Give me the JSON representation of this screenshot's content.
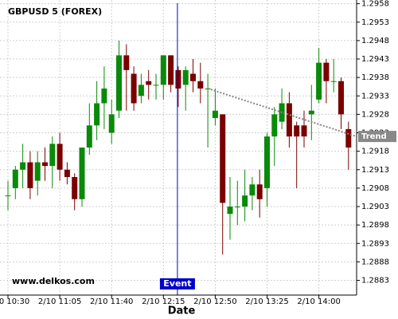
{
  "chart_data": {
    "type": "candlestick",
    "title": "GBPUSD 5 (FOREX)",
    "x_label": "Date",
    "watermark": "www.delkos.com",
    "categories": [
      "2/10 10:30",
      null,
      null,
      null,
      null,
      null,
      null,
      "2/10 11:05",
      null,
      null,
      null,
      null,
      null,
      null,
      "2/10 11:40",
      null,
      null,
      null,
      null,
      null,
      null,
      "2/10 12:15",
      null,
      null,
      null,
      null,
      null,
      null,
      "2/10 12:50",
      null,
      null,
      null,
      null,
      null,
      null,
      "2/10 13:25",
      null,
      null,
      null,
      null,
      null,
      null,
      "2/10 14:00",
      null,
      null,
      null,
      null
    ],
    "open": [
      1.2906,
      1.2908,
      1.2913,
      1.2915,
      1.291,
      1.2915,
      1.2914,
      1.292,
      1.2913,
      1.2911,
      1.2905,
      1.2919,
      1.2925,
      1.2931,
      1.2923,
      1.2929,
      1.2944,
      1.2939,
      1.2933,
      1.2937,
      1.2936,
      1.2936,
      1.2944,
      1.294,
      1.2936,
      1.2939,
      1.2937,
      1.2935,
      1.2927,
      1.2928,
      1.2901,
      1.2903,
      1.2903,
      1.2906,
      1.2909,
      1.2908,
      1.2922,
      1.2926,
      1.2931,
      1.2925,
      1.2925,
      1.2928,
      1.2932,
      1.2942,
      1.2937,
      1.2937,
      1.2924
    ],
    "high": [
      1.291,
      1.2914,
      1.292,
      1.2918,
      1.2918,
      1.2919,
      1.2922,
      1.2923,
      1.2915,
      1.2912,
      1.2919,
      1.2931,
      1.2937,
      1.2941,
      1.2932,
      1.2948,
      1.2947,
      1.2941,
      1.2939,
      1.294,
      1.2939,
      1.2944,
      1.2944,
      1.2941,
      1.2941,
      1.2943,
      1.2942,
      1.2939,
      1.2935,
      1.2928,
      1.2911,
      1.291,
      1.2913,
      1.2911,
      1.2913,
      1.2923,
      1.293,
      1.2935,
      1.2934,
      1.2926,
      1.2929,
      1.2936,
      1.2946,
      1.2943,
      1.2943,
      1.2938,
      1.2926
    ],
    "low": [
      1.2902,
      1.2905,
      1.2908,
      1.2905,
      1.2906,
      1.291,
      1.2908,
      1.291,
      1.2909,
      1.2902,
      1.2903,
      1.2917,
      1.2921,
      1.2924,
      1.292,
      1.2927,
      1.2929,
      1.2929,
      1.2931,
      1.2932,
      1.2932,
      1.2932,
      1.2934,
      1.293,
      1.2929,
      1.2934,
      1.2931,
      1.2919,
      1.2925,
      1.289,
      1.2894,
      1.2898,
      1.2899,
      1.2902,
      1.29,
      1.2903,
      1.2914,
      1.2924,
      1.2919,
      1.2908,
      1.2919,
      1.2921,
      1.2931,
      1.2931,
      1.2934,
      1.2924,
      1.2913
    ],
    "close": [
      1.2906,
      1.2913,
      1.2915,
      1.2908,
      1.2915,
      1.2914,
      1.292,
      1.2913,
      1.2911,
      1.2905,
      1.2919,
      1.2925,
      1.2931,
      1.2935,
      1.2928,
      1.2944,
      1.294,
      1.2931,
      1.2936,
      1.2936,
      1.2936,
      1.2944,
      1.2936,
      1.2935,
      1.294,
      1.2937,
      1.2935,
      1.2935,
      1.2929,
      1.2904,
      1.2903,
      1.2903,
      1.2906,
      1.2909,
      1.2905,
      1.2922,
      1.2928,
      1.2931,
      1.2922,
      1.2922,
      1.2922,
      1.2929,
      1.2942,
      1.2937,
      1.2937,
      1.2928,
      1.2919
    ],
    "up_color": "#0a8a0a",
    "down_color": "#7a0000",
    "ylim": [
      1.2879,
      1.2959
    ],
    "yticks": [
      1.2958,
      1.2953,
      1.2948,
      1.2943,
      1.2938,
      1.2933,
      1.2928,
      1.2923,
      1.2918,
      1.2913,
      1.2908,
      1.2903,
      1.2898,
      1.2893,
      1.2888,
      1.2883
    ],
    "grid": true,
    "trend": {
      "name": "Trend",
      "start": 1.2935,
      "end": 1.2922,
      "color": "#888888"
    },
    "event": {
      "label": "Event",
      "color": "#0000cc"
    }
  }
}
